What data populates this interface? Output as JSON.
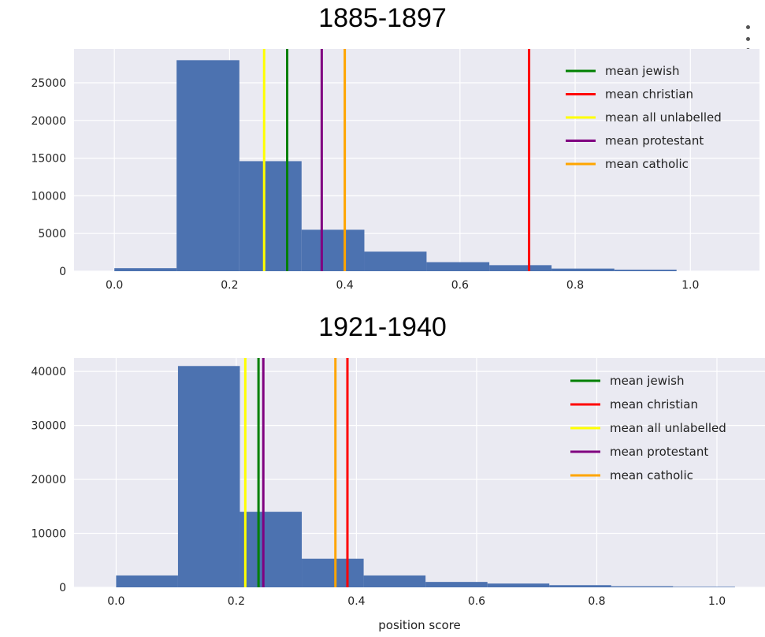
{
  "menu_icon": "more-vert-icon",
  "colors": {
    "plot_bg": "#EAEAF2",
    "bars": "#4C72B0",
    "grid": "#FFFFFF"
  },
  "chart_data": [
    {
      "type": "bar",
      "title": "1885-1897",
      "xlabel": "",
      "ylabel": "",
      "xlim": [
        -0.07,
        1.12
      ],
      "ylim": [
        0,
        29500
      ],
      "xticks": [
        0.0,
        0.2,
        0.4,
        0.6,
        0.8,
        1.0
      ],
      "xtick_labels": [
        "0.0",
        "0.2",
        "0.4",
        "0.6",
        "0.8",
        "1.0"
      ],
      "yticks": [
        0,
        5000,
        10000,
        15000,
        20000,
        25000
      ],
      "ytick_labels": [
        "0",
        "5000",
        "10000",
        "15000",
        "20000",
        "25000"
      ],
      "grid": true,
      "legend_position": "top-right",
      "histogram": {
        "edges": [
          0.0,
          0.108,
          0.217,
          0.325,
          0.434,
          0.542,
          0.651,
          0.759,
          0.868,
          0.976
        ],
        "counts": [
          400,
          28000,
          14600,
          5500,
          2600,
          1200,
          800,
          350,
          200
        ]
      },
      "lines": [
        {
          "name": "mean jewish",
          "x": 0.3,
          "color": "#008000"
        },
        {
          "name": "mean christian",
          "x": 0.72,
          "color": "#FF0000"
        },
        {
          "name": "mean all unlabelled",
          "x": 0.26,
          "color": "#FFFF00"
        },
        {
          "name": "mean protestant",
          "x": 0.36,
          "color": "#800080"
        },
        {
          "name": "mean catholic",
          "x": 0.4,
          "color": "#FFA500"
        }
      ]
    },
    {
      "type": "bar",
      "title": "1921-1940",
      "xlabel": "position score",
      "ylabel": "",
      "xlim": [
        -0.07,
        1.08
      ],
      "ylim": [
        0,
        42500
      ],
      "xticks": [
        0.0,
        0.2,
        0.4,
        0.6,
        0.8,
        1.0
      ],
      "xtick_labels": [
        "0.0",
        "0.2",
        "0.4",
        "0.6",
        "0.8",
        "1.0"
      ],
      "yticks": [
        0,
        10000,
        20000,
        30000,
        40000
      ],
      "ytick_labels": [
        "0",
        "10000",
        "20000",
        "30000",
        "40000"
      ],
      "grid": true,
      "legend_position": "top-right",
      "histogram": {
        "edges": [
          0.0,
          0.103,
          0.206,
          0.309,
          0.412,
          0.515,
          0.618,
          0.721,
          0.824,
          0.927,
          1.03
        ],
        "counts": [
          2200,
          41000,
          14000,
          5300,
          2200,
          1000,
          700,
          400,
          200,
          100
        ]
      },
      "lines": [
        {
          "name": "mean jewish",
          "x": 0.237,
          "color": "#008000"
        },
        {
          "name": "mean christian",
          "x": 0.385,
          "color": "#FF0000"
        },
        {
          "name": "mean all unlabelled",
          "x": 0.215,
          "color": "#FFFF00"
        },
        {
          "name": "mean protestant",
          "x": 0.245,
          "color": "#800080"
        },
        {
          "name": "mean catholic",
          "x": 0.365,
          "color": "#FFA500"
        }
      ]
    }
  ]
}
